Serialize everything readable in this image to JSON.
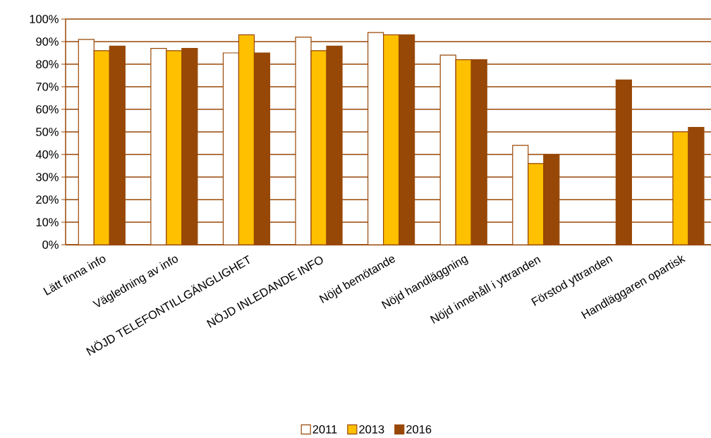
{
  "chart_data": {
    "type": "bar",
    "categories": [
      "Lätt finna info",
      "Vägledning av info",
      "NÖJD TELEFONTILLGÄNGLIGHET",
      "NÖJD INLEDANDE INFO",
      "Nöjd bemötande",
      "Nöjd handläggning",
      "Nöjd innehåll i yttranden",
      "Förstod yttranden",
      "Handläggaren opartisk"
    ],
    "series": [
      {
        "name": "2011",
        "color": "#ffffff",
        "values": [
          91,
          87,
          85,
          92,
          94,
          84,
          44,
          null,
          null
        ]
      },
      {
        "name": "2013",
        "color": "#ffc000",
        "values": [
          86,
          86,
          93,
          86,
          93,
          82,
          36,
          null,
          50
        ]
      },
      {
        "name": "2016",
        "color": "#974706",
        "values": [
          88,
          87,
          85,
          88,
          93,
          82,
          40,
          73,
          52
        ]
      }
    ],
    "ylim": [
      0,
      100
    ],
    "yticks": [
      {
        "value": 0,
        "label": "0%"
      },
      {
        "value": 10,
        "label": "10%"
      },
      {
        "value": 20,
        "label": "20%"
      },
      {
        "value": 30,
        "label": "30%"
      },
      {
        "value": 40,
        "label": "40%"
      },
      {
        "value": 50,
        "label": "50%"
      },
      {
        "value": 60,
        "label": "60%"
      },
      {
        "value": 70,
        "label": "70%"
      },
      {
        "value": 80,
        "label": "80%"
      },
      {
        "value": 90,
        "label": "90%"
      },
      {
        "value": 100,
        "label": "100%"
      }
    ],
    "grid": "y",
    "legend": "bottom"
  }
}
